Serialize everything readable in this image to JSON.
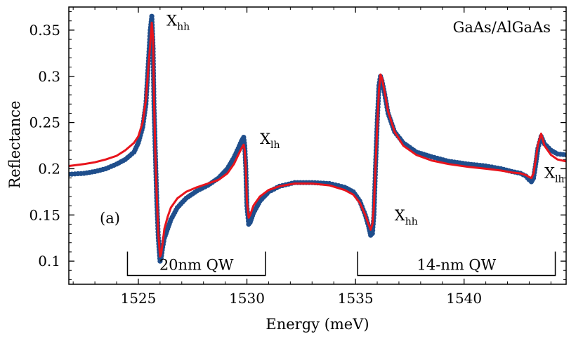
{
  "chart_data": {
    "type": "scatter",
    "title": "",
    "xlabel": "Energy (meV)",
    "ylabel": "Reflectance",
    "xlim": [
      1521.8,
      1544.7
    ],
    "ylim": [
      0.075,
      0.375
    ],
    "x_ticks": [
      1525,
      1530,
      1535,
      1540
    ],
    "y_ticks": [
      0.1,
      0.15,
      0.2,
      0.25,
      0.3,
      0.35
    ],
    "x_tick_labels": [
      "1525",
      "1530",
      "1535",
      "1540"
    ],
    "y_tick_labels": [
      "0.1",
      "0.15",
      "0.2",
      "0.25",
      "0.3",
      "0.35"
    ],
    "grid": false,
    "panel_label": "(a)",
    "sample_label": "GaAs/AlGaAs",
    "colors": {
      "data": "#1f4e8c",
      "fit": "#e8141c"
    },
    "series": [
      {
        "kind": "markers",
        "color": "#1f4e8c",
        "x": [
          1521.8,
          1522.5,
          1523.0,
          1523.5,
          1524.0,
          1524.4,
          1524.8,
          1525.0,
          1525.2,
          1525.35,
          1525.45,
          1525.55,
          1525.62,
          1525.68,
          1525.72,
          1525.78,
          1525.85,
          1525.92,
          1526.0,
          1526.05,
          1526.12,
          1526.2,
          1526.35,
          1526.5,
          1526.8,
          1527.2,
          1527.7,
          1528.2,
          1528.7,
          1529.1,
          1529.4,
          1529.6,
          1529.75,
          1529.85,
          1529.9,
          1529.95,
          1530.0,
          1530.08,
          1530.15,
          1530.3,
          1530.6,
          1531.0,
          1531.5,
          1532.2,
          1533.0,
          1533.8,
          1534.5,
          1534.9,
          1535.2,
          1535.45,
          1535.6,
          1535.7,
          1535.78,
          1535.85,
          1535.92,
          1536.0,
          1536.08,
          1536.15,
          1536.22,
          1536.35,
          1536.5,
          1536.8,
          1537.2,
          1537.8,
          1538.5,
          1539.3,
          1540.2,
          1541.0,
          1541.7,
          1542.2,
          1542.6,
          1542.85,
          1543.0,
          1543.1,
          1543.2,
          1543.3,
          1543.4,
          1543.55,
          1543.7,
          1544.0,
          1544.3,
          1544.7
        ],
        "y": [
          0.194,
          0.195,
          0.197,
          0.2,
          0.205,
          0.21,
          0.218,
          0.228,
          0.245,
          0.27,
          0.31,
          0.35,
          0.365,
          0.33,
          0.27,
          0.22,
          0.165,
          0.125,
          0.1,
          0.103,
          0.115,
          0.125,
          0.135,
          0.145,
          0.158,
          0.168,
          0.176,
          0.182,
          0.19,
          0.2,
          0.212,
          0.222,
          0.23,
          0.234,
          0.225,
          0.2,
          0.16,
          0.14,
          0.142,
          0.152,
          0.165,
          0.175,
          0.181,
          0.185,
          0.185,
          0.184,
          0.18,
          0.175,
          0.165,
          0.15,
          0.138,
          0.128,
          0.13,
          0.15,
          0.2,
          0.25,
          0.29,
          0.3,
          0.295,
          0.28,
          0.26,
          0.24,
          0.228,
          0.218,
          0.213,
          0.208,
          0.205,
          0.203,
          0.2,
          0.197,
          0.195,
          0.192,
          0.188,
          0.186,
          0.19,
          0.205,
          0.222,
          0.235,
          0.227,
          0.22,
          0.216,
          0.215
        ]
      },
      {
        "kind": "line",
        "color": "#e8141c",
        "x": [
          1521.8,
          1522.5,
          1523.0,
          1523.5,
          1524.0,
          1524.4,
          1524.8,
          1525.0,
          1525.2,
          1525.35,
          1525.45,
          1525.55,
          1525.62,
          1525.68,
          1525.72,
          1525.78,
          1525.85,
          1525.92,
          1526.0,
          1526.05,
          1526.12,
          1526.2,
          1526.35,
          1526.5,
          1526.8,
          1527.2,
          1527.7,
          1528.2,
          1528.7,
          1529.1,
          1529.4,
          1529.6,
          1529.75,
          1529.85,
          1529.9,
          1529.95,
          1530.0,
          1530.08,
          1530.15,
          1530.3,
          1530.6,
          1531.0,
          1531.5,
          1532.2,
          1533.0,
          1533.8,
          1534.5,
          1534.9,
          1535.2,
          1535.45,
          1535.6,
          1535.7,
          1535.78,
          1535.85,
          1535.92,
          1536.0,
          1536.08,
          1536.15,
          1536.22,
          1536.35,
          1536.5,
          1536.8,
          1537.2,
          1537.8,
          1538.5,
          1539.3,
          1540.2,
          1541.0,
          1541.7,
          1542.2,
          1542.6,
          1542.85,
          1543.0,
          1543.1,
          1543.2,
          1543.3,
          1543.4,
          1543.55,
          1543.7,
          1544.0,
          1544.3,
          1544.7
        ],
        "y": [
          0.203,
          0.205,
          0.207,
          0.21,
          0.214,
          0.22,
          0.228,
          0.235,
          0.25,
          0.275,
          0.305,
          0.335,
          0.358,
          0.34,
          0.28,
          0.22,
          0.17,
          0.13,
          0.105,
          0.108,
          0.12,
          0.135,
          0.148,
          0.158,
          0.168,
          0.175,
          0.18,
          0.184,
          0.188,
          0.195,
          0.205,
          0.215,
          0.222,
          0.226,
          0.22,
          0.2,
          0.165,
          0.147,
          0.15,
          0.16,
          0.17,
          0.177,
          0.181,
          0.184,
          0.184,
          0.182,
          0.177,
          0.172,
          0.163,
          0.15,
          0.14,
          0.134,
          0.14,
          0.16,
          0.2,
          0.245,
          0.285,
          0.302,
          0.298,
          0.282,
          0.262,
          0.24,
          0.225,
          0.215,
          0.209,
          0.205,
          0.202,
          0.2,
          0.198,
          0.196,
          0.195,
          0.193,
          0.191,
          0.19,
          0.195,
          0.21,
          0.226,
          0.238,
          0.225,
          0.215,
          0.21,
          0.208
        ]
      }
    ],
    "annotations": [
      {
        "main": "X",
        "sub": "hh",
        "x": 1526.3,
        "y": 0.355
      },
      {
        "main": "X",
        "sub": "lh",
        "x": 1530.6,
        "y": 0.227
      },
      {
        "main": "X",
        "sub": "hh",
        "x": 1536.8,
        "y": 0.144
      },
      {
        "main": "X",
        "sub": "lh",
        "x": 1543.7,
        "y": 0.19
      }
    ],
    "brackets": [
      {
        "label": "20nm QW",
        "x_start": 1524.5,
        "x_end": 1530.85,
        "y": 0.0845
      },
      {
        "label": "14-nm QW",
        "x_start": 1535.1,
        "x_end": 1544.2,
        "y": 0.0845
      }
    ]
  }
}
